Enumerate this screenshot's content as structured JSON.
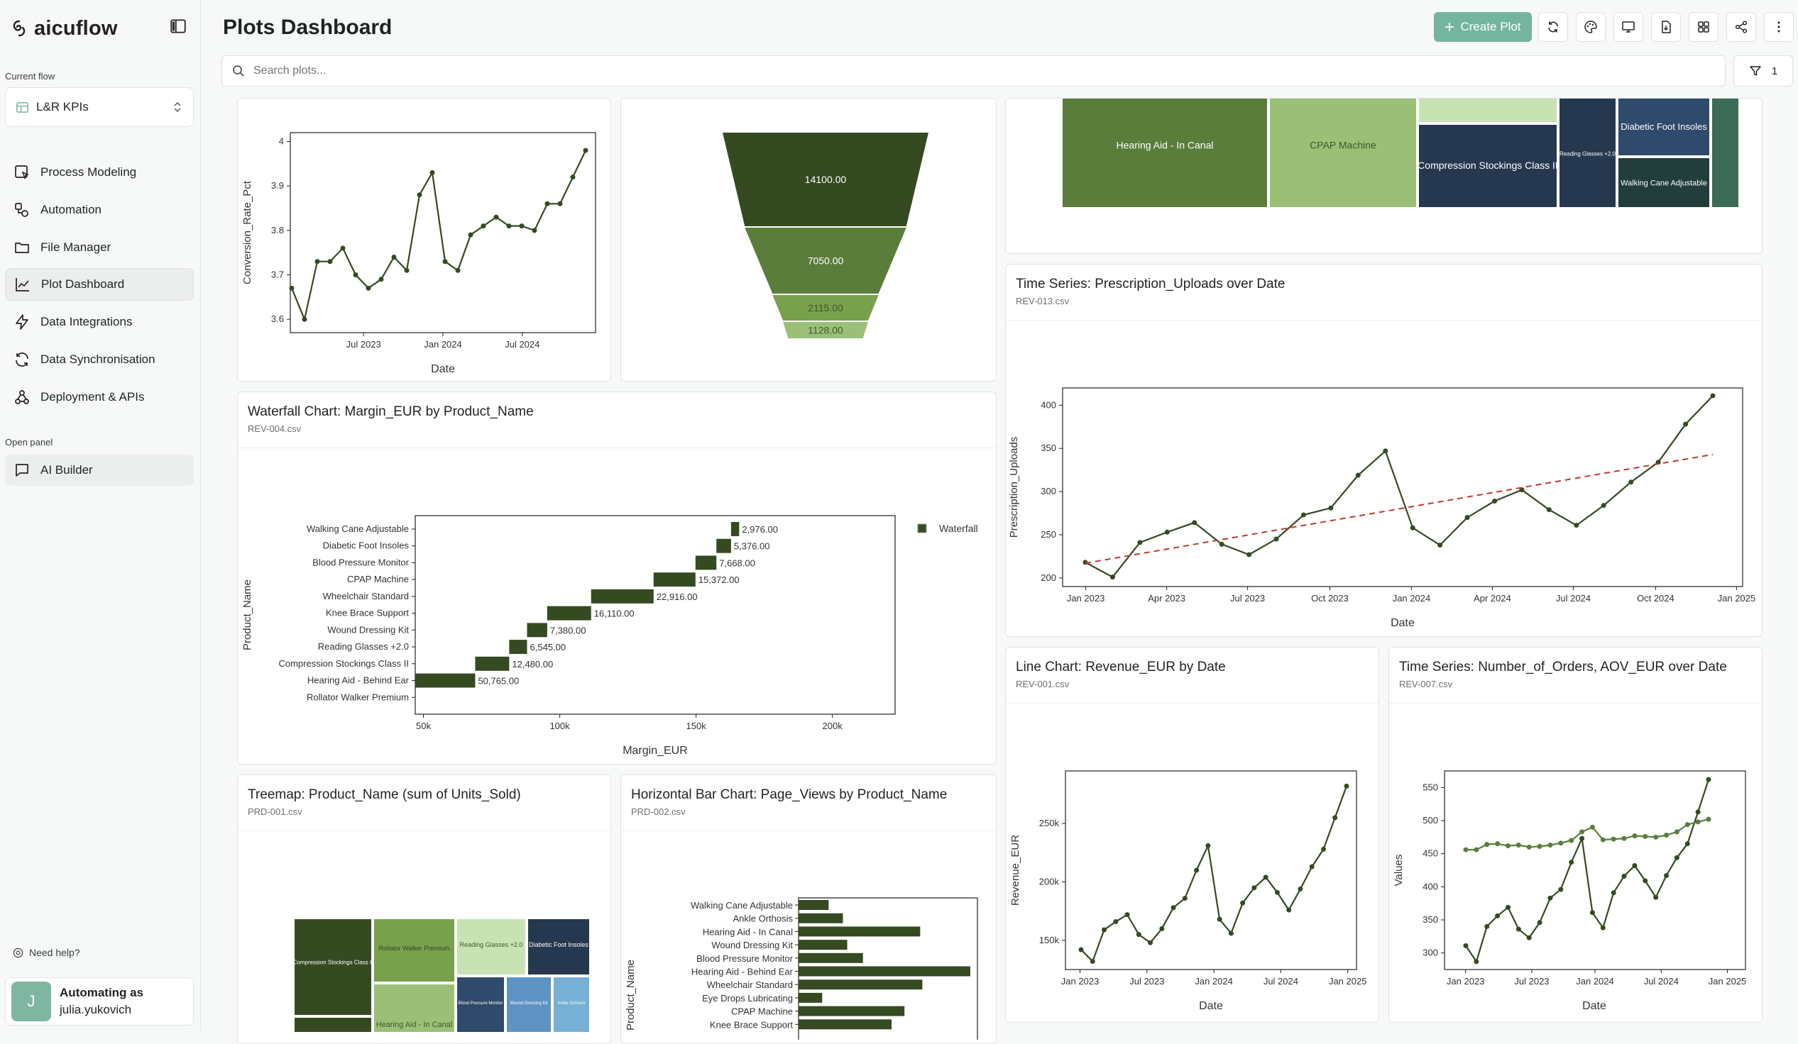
{
  "brand": {
    "name": "aicuflow"
  },
  "sidebar": {
    "current_flow_label": "Current flow",
    "current_flow": "L&R KPIs",
    "items": [
      {
        "label": "Process Modeling"
      },
      {
        "label": "Automation"
      },
      {
        "label": "File Manager"
      },
      {
        "label": "Plot Dashboard"
      },
      {
        "label": "Data Integrations"
      },
      {
        "label": "Data Synchronisation"
      },
      {
        "label": "Deployment & APIs"
      }
    ],
    "open_panel_label": "Open panel",
    "ai_builder": "AI Builder",
    "help": "Need help?",
    "user": {
      "initial": "J",
      "line1": "Automating as",
      "line2": "julia.yukovich"
    }
  },
  "header": {
    "title": "Plots Dashboard",
    "create_label": "Create Plot",
    "search_placeholder": "Search plots...",
    "filter_count": "1"
  },
  "cards": {
    "conversion": {
      "xlabel": "Date",
      "ylabel": "Conversion_Rate_Pct",
      "yticks": [
        "4",
        "3.9",
        "3.8",
        "3.7",
        "3.6"
      ],
      "xticks": [
        "Jul 2023",
        "Jan 2024",
        "Jul 2024"
      ]
    },
    "funnel": {
      "labels": [
        "14100.00",
        "7050.00",
        "2115.00",
        "1128.00"
      ]
    },
    "treemap_top": {
      "labels": [
        "Hearing Aid - In Canal",
        "CPAP Machine",
        "Compression Stockings Class II",
        "Reading Glasses +2.0",
        "Diabetic Foot Insoles",
        "Walking Cane Adjustable"
      ]
    },
    "prescription": {
      "title": "Time Series: Prescription_Uploads over Date",
      "sub": "REV-013.csv",
      "xlabel": "Date",
      "ylabel": "Prescription_Uploads",
      "yticks": [
        "400",
        "350",
        "300",
        "250",
        "200"
      ],
      "xticks": [
        "Jan 2023",
        "Apr 2023",
        "Jul 2023",
        "Oct 2023",
        "Jan 2024",
        "Apr 2024",
        "Jul 2024",
        "Oct 2024",
        "Jan 2025"
      ]
    },
    "waterfall": {
      "title": "Waterfall Chart: Margin_EUR by Product_Name",
      "sub": "REV-004.csv",
      "xlabel": "Margin_EUR",
      "ylabel": "Product_Name",
      "legend": "Waterfall",
      "xticks": [
        "50k",
        "100k",
        "150k",
        "200k"
      ],
      "categories": [
        "Walking Cane Adjustable",
        "Diabetic Foot Insoles",
        "Blood Pressure Monitor",
        "CPAP Machine",
        "Wheelchair Standard",
        "Knee Brace Support",
        "Wound Dressing Kit",
        "Reading Glasses +2.0",
        "Compression Stockings Class II",
        "Hearing Aid - Behind Ear",
        "Rollator Walker Premium"
      ],
      "value_labels": [
        "2,976.00",
        "5,376.00",
        "7,668.00",
        "15,372.00",
        "22,916.00",
        "16,110.00",
        "7,380.00",
        "6,545.00",
        "12,480.00",
        "50,765.00",
        ""
      ]
    },
    "revenue": {
      "title": "Line Chart: Revenue_EUR by Date",
      "sub": "REV-001.csv",
      "xlabel": "Date",
      "ylabel": "Revenue_EUR",
      "yticks": [
        "250k",
        "200k",
        "150k"
      ],
      "xticks": [
        "Jan 2023",
        "Jul 2023",
        "Jan 2024",
        "Jul 2024",
        "Jan 2025"
      ]
    },
    "orders": {
      "title": "Time Series: Number_of_Orders, AOV_EUR over Date",
      "sub": "REV-007.csv",
      "xlabel": "Date",
      "ylabel": "Values",
      "yticks": [
        "550",
        "500",
        "450",
        "400",
        "350",
        "300"
      ],
      "xticks": [
        "Jan 2023",
        "Jul 2023",
        "Jan 2024",
        "Jul 2024",
        "Jan 2025"
      ]
    },
    "treemap_units": {
      "title": "Treemap: Product_Name (sum of Units_Sold)",
      "sub": "PRD-001.csv",
      "labels": [
        "Compression Stockings Class II",
        "Rollator Walker Premium",
        "Reading Glasses +2.0",
        "Diabetic Foot Insoles",
        "Hearing Aid - In Canal",
        "Blood Pressure Monitor",
        "Wound Dressing Kit",
        "Ankle Orthosis"
      ]
    },
    "pageviews": {
      "title": "Horizontal Bar Chart: Page_Views by Product_Name",
      "sub": "PRD-002.csv",
      "ylabel": "Product_Name",
      "categories": [
        "Walking Cane Adjustable",
        "Ankle Orthosis",
        "Hearing Aid - In Canal",
        "Wound Dressing Kit",
        "Blood Pressure Monitor",
        "Hearing Aid - Behind Ear",
        "Wheelchair Standard",
        "Eye Drops Lubricating",
        "CPAP Machine",
        "Knee Brace Support"
      ]
    }
  },
  "chart_data": [
    {
      "type": "line",
      "ylabel": "Conversion_Rate_Pct",
      "xlabel": "Date",
      "ylim": [
        3.57,
        4.02
      ],
      "x": [
        "2023-01",
        "2023-02",
        "2023-03",
        "2023-04",
        "2023-05",
        "2023-06",
        "2023-07",
        "2023-08",
        "2023-09",
        "2023-10",
        "2023-11",
        "2023-12",
        "2024-01",
        "2024-02",
        "2024-03",
        "2024-04",
        "2024-05",
        "2024-06",
        "2024-07",
        "2024-08",
        "2024-09",
        "2024-10",
        "2024-11",
        "2024-12"
      ],
      "values": [
        3.67,
        3.6,
        3.73,
        3.73,
        3.76,
        3.7,
        3.67,
        3.69,
        3.74,
        3.71,
        3.88,
        3.93,
        3.73,
        3.71,
        3.79,
        3.81,
        3.83,
        3.81,
        3.81,
        3.8,
        3.86,
        3.86,
        3.92,
        3.98
      ]
    },
    {
      "type": "funnel",
      "values": [
        14100,
        7050,
        2115,
        1128
      ]
    },
    {
      "type": "line",
      "title": "Time Series: Prescription_Uploads over Date",
      "xlabel": "Date",
      "ylabel": "Prescription_Uploads",
      "ylim": [
        190,
        420
      ],
      "x": [
        "2023-01",
        "2023-02",
        "2023-03",
        "2023-04",
        "2023-05",
        "2023-06",
        "2023-07",
        "2023-08",
        "2023-09",
        "2023-10",
        "2023-11",
        "2023-12",
        "2024-01",
        "2024-02",
        "2024-03",
        "2024-04",
        "2024-05",
        "2024-06",
        "2024-07",
        "2024-08",
        "2024-09",
        "2024-10",
        "2024-11",
        "2024-12"
      ],
      "values": [
        218,
        201,
        241,
        253,
        264,
        239,
        227,
        245,
        273,
        281,
        319,
        347,
        258,
        238,
        270,
        289,
        302,
        279,
        261,
        284,
        311,
        334,
        378,
        411
      ],
      "trend": [
        217,
        343
      ]
    },
    {
      "type": "bar",
      "orientation": "horizontal",
      "title": "Waterfall Chart: Margin_EUR by Product_Name",
      "xlabel": "Margin_EUR",
      "ylabel": "Product_Name",
      "xlim": [
        47000,
        223000
      ],
      "categories": [
        "Walking Cane Adjustable",
        "Diabetic Foot Insoles",
        "Blood Pressure Monitor",
        "CPAP Machine",
        "Wheelchair Standard",
        "Knee Brace Support",
        "Wound Dressing Kit",
        "Reading Glasses +2.0",
        "Compression Stockings Class II",
        "Hearing Aid - Behind Ear",
        "Rollator Walker Premium"
      ],
      "values": [
        2976,
        5376,
        7668,
        15372,
        22916,
        16110,
        7380,
        6545,
        12480,
        50765,
        0
      ],
      "starts": [
        162832,
        157456,
        149788,
        134416,
        111500,
        95390,
        88010,
        81465,
        68985,
        18220,
        0
      ]
    },
    {
      "type": "line",
      "title": "Line Chart: Revenue_EUR by Date",
      "xlabel": "Date",
      "ylabel": "Revenue_EUR",
      "ylim": [
        125000,
        295000
      ],
      "x": [
        "2023-01",
        "2023-02",
        "2023-03",
        "2023-04",
        "2023-05",
        "2023-06",
        "2023-07",
        "2023-08",
        "2023-09",
        "2023-10",
        "2023-11",
        "2023-12",
        "2024-01",
        "2024-02",
        "2024-03",
        "2024-04",
        "2024-05",
        "2024-06",
        "2024-07",
        "2024-08",
        "2024-09",
        "2024-10",
        "2024-11",
        "2024-12"
      ],
      "values": [
        142000,
        132000,
        159000,
        166000,
        172000,
        155000,
        148000,
        160000,
        178000,
        186000,
        210000,
        231000,
        168000,
        156000,
        182000,
        195000,
        204000,
        191000,
        176000,
        194000,
        213000,
        228000,
        255000,
        282000
      ]
    },
    {
      "type": "line",
      "title": "Time Series: Number_of_Orders, AOV_EUR over Date",
      "xlabel": "Date",
      "ylabel": "Values",
      "ylim": [
        275,
        575
      ],
      "x": [
        "2023-01",
        "2023-02",
        "2023-03",
        "2023-04",
        "2023-05",
        "2023-06",
        "2023-07",
        "2023-08",
        "2023-09",
        "2023-10",
        "2023-11",
        "2023-12",
        "2024-01",
        "2024-02",
        "2024-03",
        "2024-04",
        "2024-05",
        "2024-06",
        "2024-07",
        "2024-08",
        "2024-09",
        "2024-10",
        "2024-11",
        "2024-12"
      ],
      "series": [
        {
          "values": [
            311,
            287,
            340,
            356,
            369,
            336,
            323,
            346,
            383,
            396,
            437,
            473,
            361,
            338,
            391,
            416,
            432,
            409,
            384,
            417,
            444,
            465,
            513,
            562
          ]
        },
        {
          "values": [
            456,
            456,
            464,
            465,
            462,
            463,
            460,
            461,
            463,
            466,
            470,
            483,
            490,
            471,
            472,
            473,
            477,
            476,
            475,
            478,
            483,
            494,
            498,
            502
          ]
        }
      ]
    },
    {
      "type": "treemap",
      "title": "Treemap: Product_Name (sum of Units_Sold)"
    },
    {
      "type": "bar",
      "orientation": "horizontal",
      "title": "Horizontal Bar Chart: Page_Views by Product_Name",
      "ylabel": "Product_Name",
      "categories": [
        "Walking Cane Adjustable",
        "Ankle Orthosis",
        "Hearing Aid - In Canal",
        "Wound Dressing Kit",
        "Blood Pressure Monitor",
        "Hearing Aid - Behind Ear",
        "Wheelchair Standard",
        "Eye Drops Lubricating",
        "CPAP Machine",
        "Knee Brace Support"
      ],
      "values": [
        42,
        62,
        170,
        68,
        90,
        240,
        173,
        33,
        148,
        130
      ]
    }
  ],
  "colors": {
    "dark": "#354a21",
    "mid": "#5a7d3b",
    "light": "#9cbf78",
    "pale": "#c8e2b3",
    "navy": "#26384f",
    "accent": "#74b59f",
    "trend": "#c0392b"
  }
}
